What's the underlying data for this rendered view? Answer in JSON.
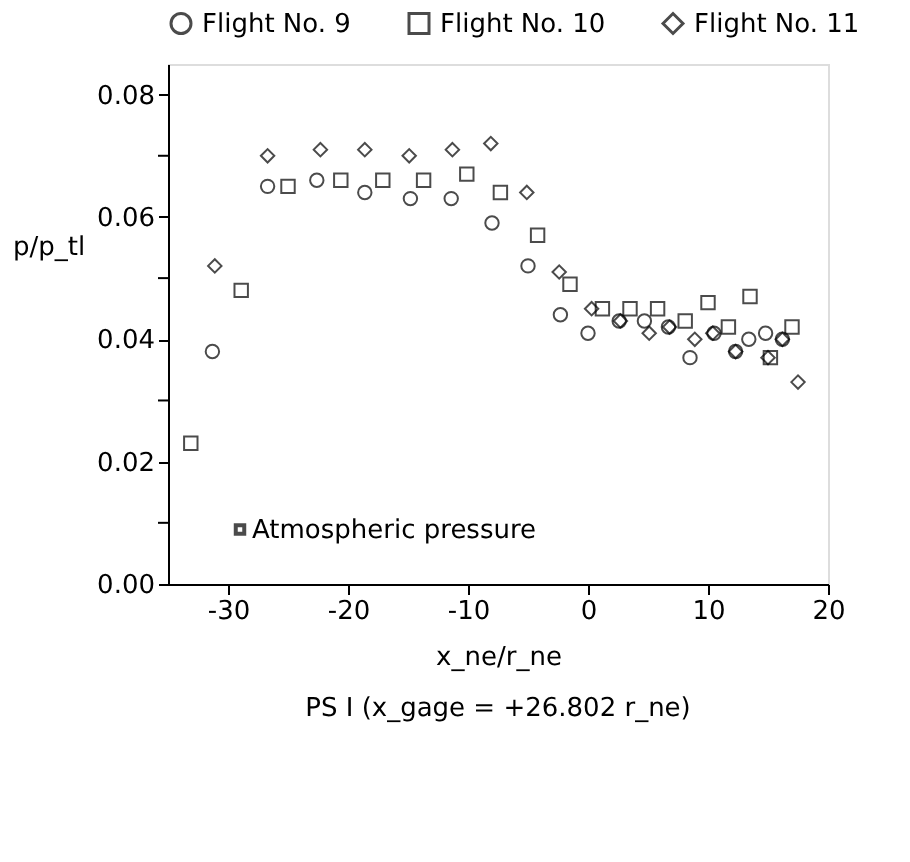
{
  "chart_data": {
    "type": "scatter",
    "xlabel": "x_ne/r_ne",
    "ylabel": "p/p_tl",
    "xlim": [
      -35,
      20
    ],
    "xticks": [
      -30,
      -20,
      -10,
      0,
      10,
      20
    ],
    "ylim": [
      0,
      0.085
    ],
    "yticks": [
      {
        "value": 0,
        "label": "0.00"
      },
      {
        "value": 0.01,
        "label": null
      },
      {
        "value": 0.02,
        "label": "0.02"
      },
      {
        "value": 0.03,
        "label": null
      },
      {
        "value": 0.04,
        "label": "0.04"
      },
      {
        "value": 0.05,
        "label": null
      },
      {
        "value": 0.06,
        "label": "0.06"
      },
      {
        "value": 0.07,
        "label": null
      },
      {
        "value": 0.08,
        "label": "0.08"
      }
    ],
    "grid": false,
    "legend": "top",
    "annotations": [
      {
        "text": "Atmospheric pressure",
        "x": -29.0,
        "y": 0.0089
      },
      "PS I (x_gage = +26.802 r_ne)"
    ],
    "series": [
      {
        "name": "Flight No. 9",
        "color": "#000000",
        "marker": "circle",
        "x": [
          -31.3,
          -26.7,
          -22.6,
          -18.6,
          -14.8,
          -11.4,
          -8.0,
          -5.0,
          -2.3,
          0.0,
          2.6,
          4.7,
          6.7,
          8.5,
          10.5,
          12.3,
          13.4,
          14.8,
          16.2
        ],
        "values": [
          0.038,
          0.065,
          0.066,
          0.064,
          0.063,
          0.063,
          0.059,
          0.052,
          0.044,
          0.041,
          0.043,
          0.043,
          0.042,
          0.037,
          0.041,
          0.038,
          0.04,
          0.041,
          0.04
        ]
      },
      {
        "name": "Flight No. 10",
        "color": "#000000",
        "marker": "square",
        "x": [
          -33.1,
          -28.9,
          -25.0,
          -20.6,
          -17.1,
          -13.7,
          -10.1,
          -7.3,
          -4.2,
          -1.5,
          1.2,
          3.5,
          5.8,
          8.1,
          10.0,
          11.7,
          13.5,
          15.2,
          17.0
        ],
        "values": [
          0.023,
          0.048,
          0.065,
          0.066,
          0.066,
          0.066,
          0.067,
          0.064,
          0.057,
          0.049,
          0.045,
          0.045,
          0.045,
          0.043,
          0.046,
          0.042,
          0.047,
          0.037,
          0.042
        ]
      },
      {
        "name": "Flight No. 11",
        "color": "#000000",
        "marker": "diamond",
        "x": [
          -31.1,
          -26.7,
          -22.3,
          -18.6,
          -14.9,
          -11.3,
          -8.1,
          -5.1,
          -2.4,
          0.3,
          2.7,
          5.1,
          6.8,
          8.9,
          10.4,
          12.3,
          15.0,
          16.2,
          17.5
        ],
        "values": [
          0.052,
          0.07,
          0.071,
          0.071,
          0.07,
          0.071,
          0.072,
          0.064,
          0.051,
          0.045,
          0.043,
          0.041,
          0.042,
          0.04,
          0.041,
          0.038,
          0.037,
          0.04,
          0.033
        ]
      }
    ]
  }
}
